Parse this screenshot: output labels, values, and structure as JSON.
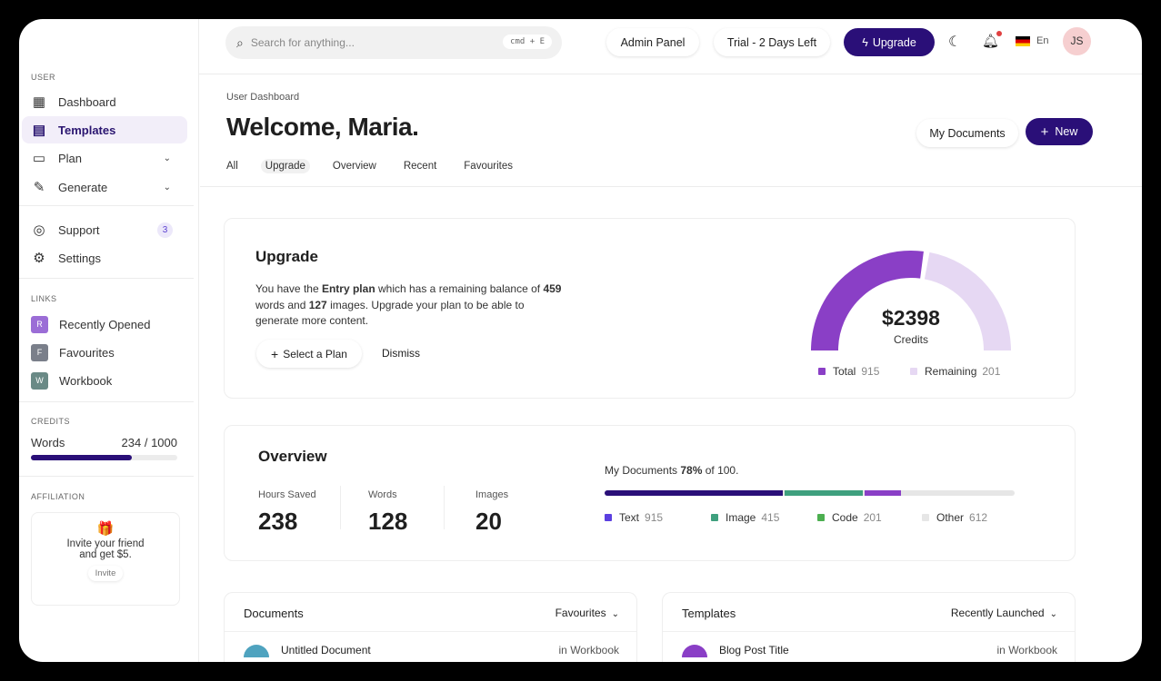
{
  "sidebar": {
    "user_label": "USER",
    "items": [
      {
        "label": "Dashboard",
        "icon": "grid-icon"
      },
      {
        "label": "Templates",
        "icon": "document-icon",
        "active": true
      },
      {
        "label": "Plan",
        "icon": "wallet-icon"
      },
      {
        "label": "Generate",
        "icon": "pencil-icon"
      }
    ],
    "support": {
      "label": "Support",
      "badge": "3"
    },
    "settings": {
      "label": "Settings"
    },
    "links_label": "LINKS",
    "links": [
      {
        "letter": "R",
        "label": "Recently Opened",
        "color": "#9b6dd6"
      },
      {
        "letter": "F",
        "label": "Favourites",
        "color": "#7a7f8a"
      },
      {
        "letter": "W",
        "label": "Workbook",
        "color": "#6a8a86"
      }
    ],
    "credits_label": "CREDITS",
    "credits": {
      "label": "Words",
      "value": "234 / 1000",
      "fill_fraction": 0.69
    },
    "affiliation_label": "AFFILIATION",
    "affiliation": {
      "text1": "Invite your friend",
      "text2": "and get $5.",
      "button": "Invite"
    }
  },
  "topbar": {
    "search_placeholder": "Search for anything...",
    "shortcut": "cmd + E",
    "admin": "Admin Panel",
    "trial": "Trial - 2 Days Left",
    "upgrade": "Upgrade",
    "lang": "En",
    "avatar": "JS"
  },
  "header": {
    "breadcrumb": "User Dashboard",
    "title": "Welcome, Maria.",
    "tabs": [
      "All",
      "Upgrade",
      "Overview",
      "Recent",
      "Favourites"
    ],
    "active_tab": "Upgrade",
    "my_documents": "My Documents",
    "new": "New"
  },
  "upgrade": {
    "title": "Upgrade",
    "t1": "You have the ",
    "plan": "Entry plan",
    "t2": " which has a remaining balance of ",
    "words": "459",
    "t3": " words and ",
    "images": "127",
    "t4": " images. Upgrade your plan to be able to generate more content.",
    "select": "Select a Plan",
    "dismiss": "Dismiss",
    "gauge": {
      "amount": "$2398",
      "label": "Credits",
      "total_label": "Total",
      "total": "915",
      "remaining_label": "Remaining",
      "remaining": "201",
      "total_fraction": 0.55,
      "colors": {
        "total": "#8a3fc6",
        "remaining": "#e6d8f3"
      }
    }
  },
  "overview": {
    "title": "Overview",
    "stats": [
      {
        "label": "Hours Saved",
        "value": "238"
      },
      {
        "label": "Words",
        "value": "128"
      },
      {
        "label": "Images",
        "value": "20"
      }
    ],
    "docs_prefix": "My Documents ",
    "docs_pct": "78%",
    "docs_suffix": " of 100.",
    "segments": [
      {
        "label": "Text",
        "value": "915",
        "color": "#2a0f78",
        "legend_color": "#5b3fe0",
        "fraction": 0.435
      },
      {
        "label": "Image",
        "value": "415",
        "color": "#3fa07e",
        "legend_color": "#3fa07e",
        "fraction": 0.19
      },
      {
        "label": "Code",
        "value": "201",
        "color": "#8a3fc6",
        "legend_color": "#4caf50",
        "fraction": 0.09
      },
      {
        "label": "Other",
        "value": "612",
        "color": "#e6e6e6",
        "legend_color": "#e6e6e6"
      }
    ]
  },
  "documents": {
    "title": "Documents",
    "filter": "Favourites",
    "row": {
      "name": "Untitled Document",
      "location": "in Workbook"
    }
  },
  "templates": {
    "title": "Templates",
    "filter": "Recently Launched",
    "row": {
      "name": "Blog Post Title",
      "location": "in Workbook"
    }
  }
}
